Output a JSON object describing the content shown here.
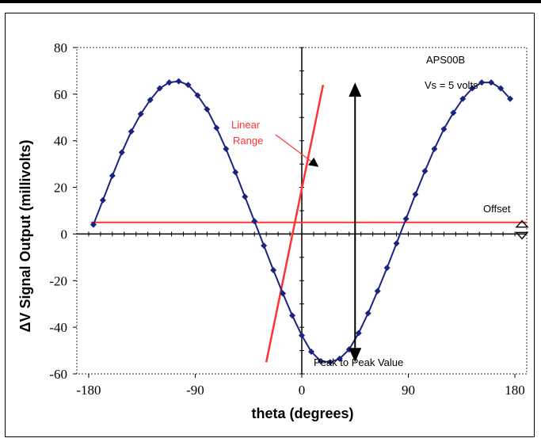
{
  "chart_data": {
    "type": "line",
    "xlabel": "theta (degrees)",
    "ylabel": "ΔV Signal Output (millivolts)",
    "xlim": [
      -190,
      190
    ],
    "ylim": [
      -60,
      80
    ],
    "xticks": [
      -180,
      -90,
      0,
      90,
      180
    ],
    "xtick_labels": [
      "-180",
      "-90",
      "0",
      "90",
      "180"
    ],
    "yticks": [
      -60,
      -40,
      -20,
      0,
      20,
      40,
      60,
      80
    ],
    "ytick_labels": [
      "-60",
      "-40",
      "-20",
      "0",
      "20",
      "40",
      "60",
      "80"
    ],
    "grid": false,
    "series": [
      {
        "color": "#1a237e",
        "marker": "diamond",
        "x": [
          -176,
          -168,
          -160,
          -152,
          -144,
          -136,
          -128,
          -120,
          -112,
          -104,
          -96,
          -88,
          -80,
          -72,
          -64,
          -56,
          -48,
          -40,
          -32,
          -24,
          -16,
          -8,
          0,
          8,
          16,
          24,
          32,
          40,
          48,
          56,
          64,
          72,
          80,
          88,
          96,
          104,
          112,
          120,
          128,
          136,
          144,
          152,
          160,
          168,
          176
        ],
        "values": [
          4.0,
          14.5,
          25.0,
          35.0,
          44.0,
          51.5,
          57.5,
          62.5,
          65.0,
          65.5,
          64.0,
          59.5,
          53.5,
          45.5,
          36.5,
          26.5,
          16.0,
          5.5,
          -5.0,
          -15.5,
          -25.5,
          -35.0,
          -43.5,
          -50.5,
          -54.5,
          -55.0,
          -53.5,
          -49.5,
          -42.5,
          -34.0,
          -24.5,
          -14.5,
          -4.0,
          6.5,
          17.0,
          27.0,
          36.5,
          45.0,
          52.0,
          58.0,
          62.5,
          65.0,
          65.0,
          62.5,
          58.0
        ]
      }
    ],
    "reference_lines": [
      {
        "type": "horizontal",
        "y": 5,
        "color": "#ff3333"
      },
      {
        "type": "segment",
        "x1": -30,
        "y1": -55,
        "x2": 18,
        "y2": 64,
        "color": "#ff3333"
      }
    ],
    "annotations": {
      "device": "APS00B",
      "supply": "Vs = 5 volts",
      "linear_range_line1": "Linear",
      "linear_range_line2": "Range",
      "offset": "Offset",
      "peak_to_peak": "Peak to Peak Value"
    },
    "colors": {
      "series": "#1a237e",
      "reference": "#ff3333",
      "annotation_text": "#ff3333"
    }
  }
}
